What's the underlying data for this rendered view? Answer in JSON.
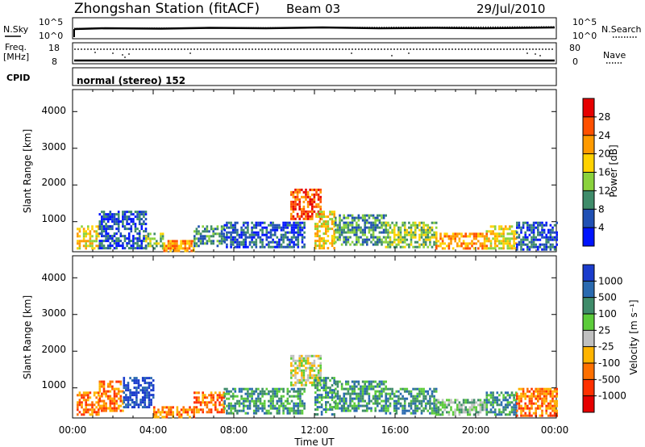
{
  "header": {
    "station": "Zhongshan Station (fitACF)",
    "beam": "Beam 03",
    "date": "29/Jul/2010"
  },
  "top_panels": {
    "nsky": {
      "label": "N.Sky",
      "ticks": [
        "10^5",
        "10^0"
      ]
    },
    "nsearch": {
      "label": "N.Search",
      "ticks": [
        "10^5",
        "10^0"
      ]
    },
    "freq": {
      "label": "Freq.",
      "unit": "[MHz]",
      "ticks": [
        "18",
        "8"
      ]
    },
    "nave": {
      "label": "Nave",
      "ticks": [
        "80",
        "0"
      ]
    },
    "cpid": {
      "label": "CPID",
      "value": "normal (stereo) 152"
    }
  },
  "chart_data": [
    {
      "type": "heatmap",
      "name": "power",
      "title": "",
      "xlabel": "",
      "ylabel": "Slant Range [km]",
      "xlim": [
        "00:00",
        "24:00"
      ],
      "ylim": [
        180,
        4600
      ],
      "y_ticks": [
        "1000",
        "2000",
        "3000",
        "4000"
      ],
      "colorbar": {
        "label": "Power [dB]",
        "ticks": [
          "28",
          "24",
          "20",
          "16",
          "12",
          "8",
          "4"
        ],
        "colors": [
          "#e60000",
          "#ff5000",
          "#ff9a00",
          "#ffd200",
          "#8ad23c",
          "#3f8c6a",
          "#2050b4",
          "#0014ff"
        ]
      },
      "blobs": [
        {
          "t0": 0.2,
          "t1": 1.3,
          "r0": 300,
          "r1": 900,
          "level": 3
        },
        {
          "t0": 1.3,
          "t1": 3.6,
          "r0": 280,
          "r1": 1300,
          "level": 6
        },
        {
          "t0": 3.6,
          "t1": 4.5,
          "r0": 250,
          "r1": 700,
          "level": 4
        },
        {
          "t0": 4.5,
          "t1": 6.0,
          "r0": 200,
          "r1": 500,
          "level": 2
        },
        {
          "t0": 6.0,
          "t1": 7.5,
          "r0": 350,
          "r1": 900,
          "level": 5
        },
        {
          "t0": 7.5,
          "t1": 11.5,
          "r0": 300,
          "r1": 1000,
          "level": 6
        },
        {
          "t0": 10.8,
          "t1": 12.3,
          "r0": 1100,
          "r1": 1900,
          "level": 1
        },
        {
          "t0": 12.0,
          "t1": 13.0,
          "r0": 300,
          "r1": 1300,
          "level": 3
        },
        {
          "t0": 13.0,
          "t1": 15.5,
          "r0": 350,
          "r1": 1200,
          "level": 5
        },
        {
          "t0": 15.5,
          "t1": 18.0,
          "r0": 300,
          "r1": 1000,
          "level": 4
        },
        {
          "t0": 18.0,
          "t1": 20.5,
          "r0": 280,
          "r1": 700,
          "level": 2
        },
        {
          "t0": 20.5,
          "t1": 22.0,
          "r0": 300,
          "r1": 900,
          "level": 3
        },
        {
          "t0": 22.0,
          "t1": 24.0,
          "r0": 250,
          "r1": 1000,
          "level": 6
        }
      ]
    },
    {
      "type": "heatmap",
      "name": "velocity",
      "title": "",
      "xlabel": "Time UT",
      "ylabel": "Slant Range [km]",
      "xlim": [
        "00:00",
        "24:00"
      ],
      "ylim": [
        180,
        4600
      ],
      "x_ticks": [
        "00:00",
        "04:00",
        "08:00",
        "12:00",
        "16:00",
        "20:00",
        "00:00"
      ],
      "y_ticks": [
        "1000",
        "2000",
        "3000",
        "4000"
      ],
      "colorbar": {
        "label": "Velocity [m s⁻¹]",
        "ticks": [
          "1000",
          "500",
          "100",
          "25",
          "-25",
          "-100",
          "-500",
          "-1000"
        ],
        "colors": [
          "#1a3ccc",
          "#2a6ab0",
          "#3f8c6a",
          "#5ccc3a",
          "#c0c0c0",
          "#ffb400",
          "#ff7000",
          "#ff3000",
          "#e60000"
        ]
      },
      "blobs": [
        {
          "t0": 0.2,
          "t1": 1.3,
          "r0": 300,
          "r1": 900,
          "level": 6
        },
        {
          "t0": 1.3,
          "t1": 2.5,
          "r0": 350,
          "r1": 1200,
          "level": 6
        },
        {
          "t0": 2.5,
          "t1": 4.0,
          "r0": 500,
          "r1": 1300,
          "level": 0
        },
        {
          "t0": 4.0,
          "t1": 6.0,
          "r0": 200,
          "r1": 500,
          "level": 6
        },
        {
          "t0": 6.0,
          "t1": 7.5,
          "r0": 350,
          "r1": 900,
          "level": 6
        },
        {
          "t0": 7.5,
          "t1": 11.5,
          "r0": 300,
          "r1": 1000,
          "level": 2
        },
        {
          "t0": 10.8,
          "t1": 12.3,
          "r0": 1100,
          "r1": 1900,
          "level": 4
        },
        {
          "t0": 12.0,
          "t1": 13.0,
          "r0": 300,
          "r1": 1300,
          "level": 2
        },
        {
          "t0": 13.0,
          "t1": 15.5,
          "r0": 350,
          "r1": 1200,
          "level": 2
        },
        {
          "t0": 15.5,
          "t1": 18.0,
          "r0": 300,
          "r1": 1000,
          "level": 2
        },
        {
          "t0": 18.0,
          "t1": 20.5,
          "r0": 280,
          "r1": 700,
          "level": 3
        },
        {
          "t0": 20.5,
          "t1": 22.0,
          "r0": 300,
          "r1": 900,
          "level": 2
        },
        {
          "t0": 22.0,
          "t1": 24.0,
          "r0": 250,
          "r1": 1000,
          "level": 6
        }
      ]
    }
  ]
}
